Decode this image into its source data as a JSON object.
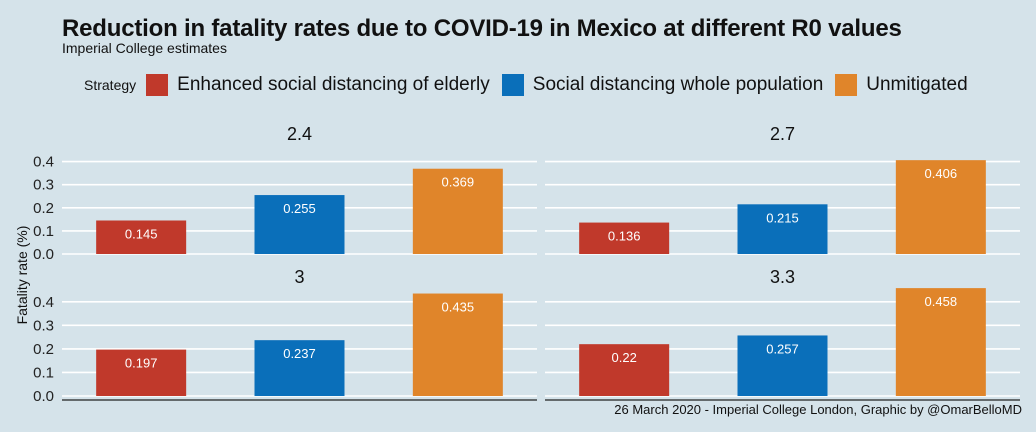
{
  "chart_title": "Reduction in fatality rates due to COVID-19 in Mexico at different R0 values",
  "chart_subtitle": "Imperial College estimates",
  "legend_title": "Strategy",
  "credit": "26 March 2020 - Imperial College London, Graphic by @OmarBelloMD",
  "colors": {
    "background": "#d5e3ea",
    "grid": "#ffffff",
    "value_label": "#ffffff"
  },
  "chart_data": {
    "type": "bar",
    "ylabel": "Fatality rate (%)",
    "xlabel": "",
    "ylim": [
      0,
      0.45
    ],
    "yticks": [
      "0.0",
      "0.1",
      "0.2",
      "0.3",
      "0.4"
    ],
    "grid": true,
    "legend_position": "top",
    "categories": [
      "Enhanced social distancing of elderly",
      "Social distancing whole population",
      "Unmitigated"
    ],
    "colors": [
      "#c0392b",
      "#0a6fba",
      "#e0852a"
    ],
    "panels": [
      {
        "label": "2.4",
        "values": [
          0.145,
          0.255,
          0.369
        ]
      },
      {
        "label": "2.7",
        "values": [
          0.136,
          0.215,
          0.406
        ]
      },
      {
        "label": "3",
        "values": [
          0.197,
          0.237,
          0.435
        ]
      },
      {
        "label": "3.3",
        "values": [
          0.22,
          0.257,
          0.458
        ]
      }
    ]
  }
}
